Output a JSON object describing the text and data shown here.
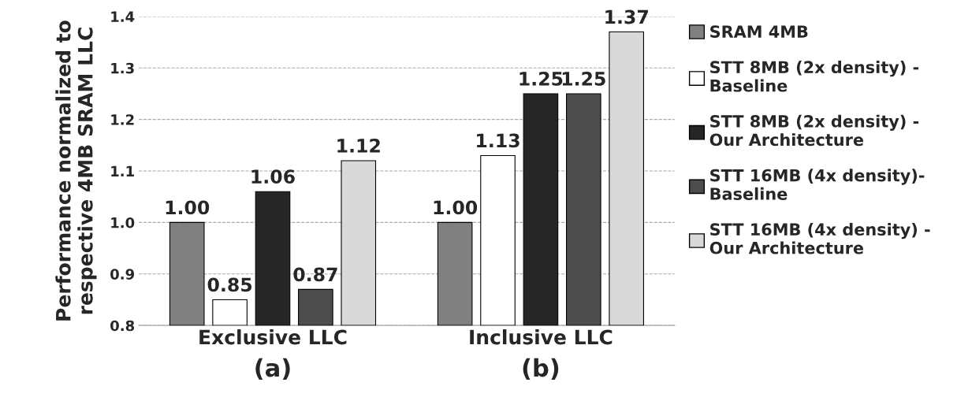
{
  "chart_data": {
    "type": "bar",
    "ylabel": "Performance normalized to\nrespective 4MB SRAM LLC",
    "categories": [
      "Exclusive LLC",
      "Inclusive LLC"
    ],
    "series": [
      {
        "name": "SRAM 4MB",
        "color": "#808080",
        "values": [
          1.0,
          1.0
        ],
        "value_labels": [
          "1.00",
          "1.00"
        ]
      },
      {
        "name": "STT 8MB (2x density) -\nBaseline",
        "color": "#ffffff",
        "values": [
          0.85,
          1.13
        ],
        "value_labels": [
          "0.85",
          "1.13"
        ]
      },
      {
        "name": "STT 8MB (2x density) -\nOur Architecture",
        "color": "#262626",
        "values": [
          1.06,
          1.25
        ],
        "value_labels": [
          "1.06",
          "1.25"
        ]
      },
      {
        "name": "STT 16MB (4x density)-\nBaseline",
        "color": "#4d4d4d",
        "values": [
          0.87,
          1.25
        ],
        "value_labels": [
          "0.87",
          "1.25"
        ]
      },
      {
        "name": "STT 16MB (4x density) -\nOur Architecture",
        "color": "#d9d9d9",
        "values": [
          1.12,
          1.37
        ],
        "value_labels": [
          "1.12",
          "1.37"
        ]
      }
    ],
    "ylim": [
      0.8,
      1.4
    ],
    "yticks": [
      {
        "value": 0.8,
        "label": "0.8"
      },
      {
        "value": 0.9,
        "label": "0.9"
      },
      {
        "value": 1.0,
        "label": "1.0"
      },
      {
        "value": 1.1,
        "label": "1.1"
      },
      {
        "value": 1.2,
        "label": "1.2"
      },
      {
        "value": 1.3,
        "label": "1.3"
      },
      {
        "value": 1.4,
        "label": "1.4"
      }
    ],
    "grid": "y",
    "legend": "right",
    "annotations": [
      "(a)",
      "(b)"
    ]
  }
}
